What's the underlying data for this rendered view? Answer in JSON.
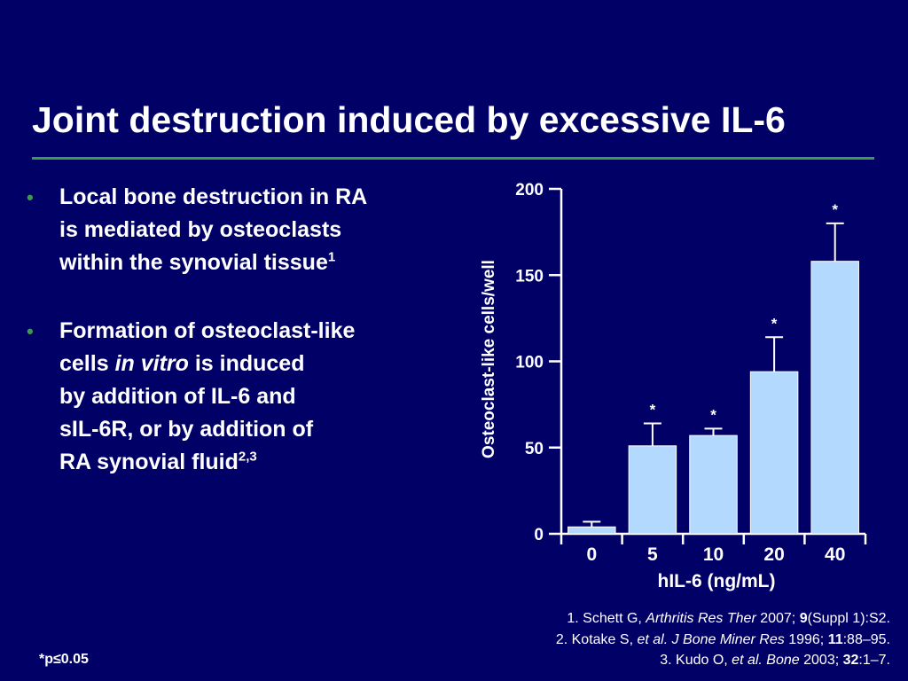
{
  "slide": {
    "title": "Joint destruction induced by excessive IL-6"
  },
  "bullets": [
    {
      "lines": [
        "Local bone destruction in RA",
        "is mediated by osteoclasts",
        "within the synovial tissue"
      ],
      "superscript": "1"
    },
    {
      "line1_before": "Formation of osteoclast-like",
      "line2_prefix": "cells ",
      "line2_italic": "in vitro",
      "line2_suffix": " is induced",
      "line3": "by addition of IL-6 and",
      "line4": "sIL-6R, or by addition of",
      "line5": "RA synovial fluid",
      "superscript": "2,3"
    }
  ],
  "chart_data": {
    "type": "bar",
    "categories": [
      "0",
      "5",
      "10",
      "20",
      "40"
    ],
    "values": [
      4,
      51,
      57,
      94,
      158
    ],
    "error_upper": [
      7,
      64,
      61,
      114,
      180
    ],
    "significant": [
      false,
      true,
      true,
      true,
      true
    ],
    "significance_marker": "*",
    "xlabel": "hIL-6 (ng/mL)",
    "ylabel": "Osteoclast-like cells/well",
    "yticks": [
      "0",
      "50",
      "100",
      "150",
      "200"
    ],
    "ylim": [
      0,
      200
    ],
    "bar_color": "#b3d9ff"
  },
  "footnote": "*p≤0.05",
  "references": [
    {
      "a": "1. Schett G, ",
      "i": "Arthritis Res Ther",
      "b": " 2007; ",
      "bold": "9",
      "c": "(Suppl 1):S2."
    },
    {
      "a": "2. Kotake S, ",
      "i": "et al. J Bone Miner Res",
      "b": " 1996; ",
      "bold": "11",
      "c": ":88–95."
    },
    {
      "a": "3. Kudo O, ",
      "i": "et al. Bone",
      "b": " 2003; ",
      "bold": "32",
      "c": ":1–7."
    }
  ]
}
